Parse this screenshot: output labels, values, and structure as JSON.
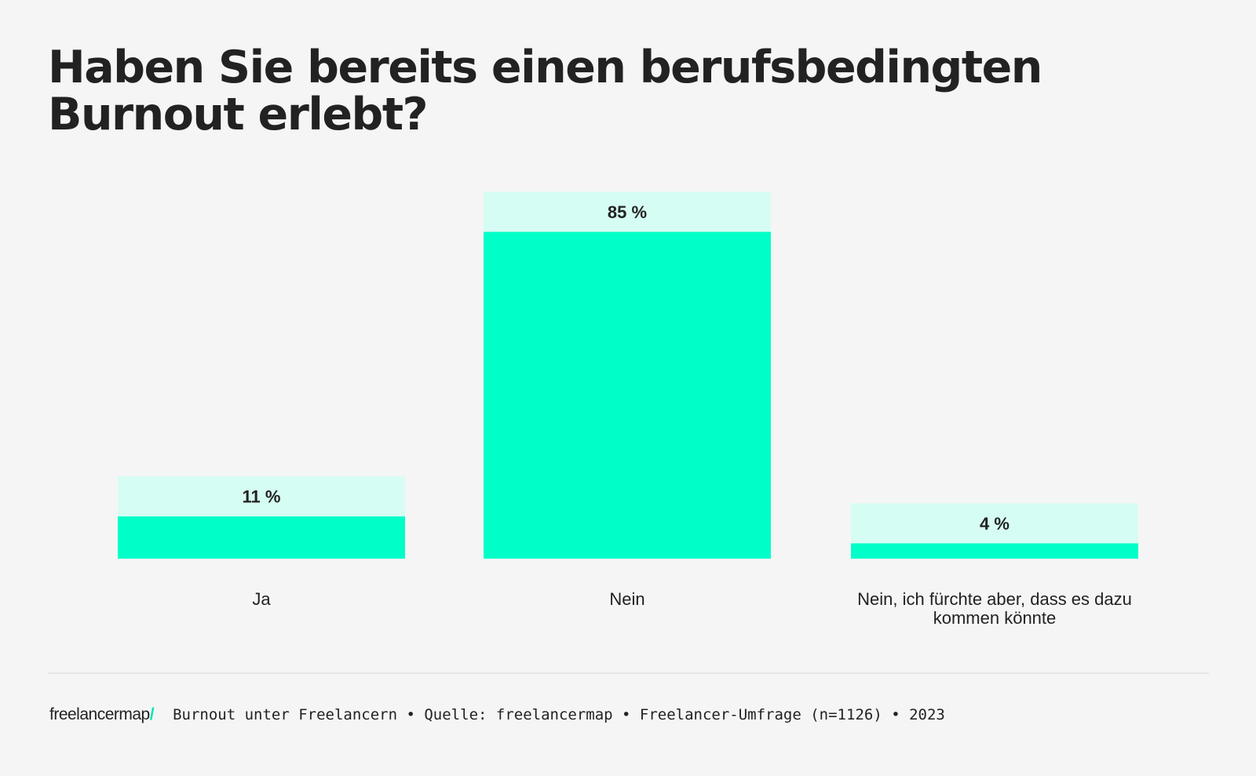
{
  "chart_data": {
    "type": "bar",
    "title": "Haben Sie bereits einen berufsbedingten Burnout erlebt?",
    "categories": [
      "Ja",
      "Nein",
      "Nein, ich fürchte aber, dass es dazu kommen könnte"
    ],
    "values": [
      11,
      85,
      4
    ],
    "value_labels": [
      "11 %",
      "85 %",
      "4 %"
    ],
    "unit": "%",
    "ylim": [
      0,
      100
    ],
    "grid": false,
    "colors": {
      "bar": "#00ffc8",
      "label_box": "#d6fdf3",
      "text": "#222222",
      "background": "#f5f5f5"
    }
  },
  "footer": {
    "logo": "freelancermap",
    "logo_slash": "/",
    "source": "Burnout unter Freelancern • Quelle: freelancermap • Freelancer-Umfrage (n=1126) • 2023"
  }
}
